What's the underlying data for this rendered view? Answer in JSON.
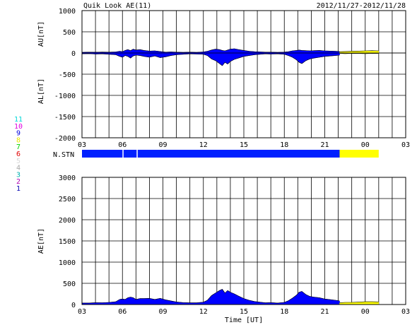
{
  "header": {
    "title": "Quik Look AE(11)",
    "date_range": "2012/11/27-2012/11/28"
  },
  "station_legend": {
    "items": [
      {
        "label": "11",
        "color": "#00d8d8"
      },
      {
        "label": "10",
        "color": "#e000e0"
      },
      {
        "label": "9",
        "color": "#0000e0"
      },
      {
        "label": "8",
        "color": "#e8e800"
      },
      {
        "label": "7",
        "color": "#00d000"
      },
      {
        "label": "6",
        "color": "#e00000"
      },
      {
        "label": "5",
        "color": "#d8d8d8"
      },
      {
        "label": "4",
        "color": "#a8a8a8"
      },
      {
        "label": "3",
        "color": "#00b0b0"
      },
      {
        "label": "2",
        "color": "#b000b0"
      },
      {
        "label": "1",
        "color": "#0000b0"
      }
    ]
  },
  "nstn": {
    "label": "N.STN",
    "segments": [
      {
        "start": 3.0,
        "end": 6.0,
        "color": "#0020ff"
      },
      {
        "start": 6.08,
        "end": 7.05,
        "color": "#0020ff"
      },
      {
        "start": 7.13,
        "end": 22.1,
        "color": "#0020ff"
      },
      {
        "start": 22.1,
        "end": 25.0,
        "color": "#ffff00"
      }
    ]
  },
  "chart_data": [
    {
      "type": "area",
      "ylabel_upper": "AU[nT]",
      "ylabel_lower": "AL[nT]",
      "ylim": [
        -2000,
        1000
      ],
      "yticks": [
        1000,
        500,
        0,
        -500,
        -1000,
        -1500,
        -2000
      ],
      "xlim": [
        3,
        27
      ],
      "xticks": [
        "03",
        "06",
        "09",
        "12",
        "15",
        "18",
        "21",
        "00",
        "03"
      ],
      "grid": true,
      "series": [
        {
          "color": "#0000ff",
          "x": [
            3.0,
            3.5,
            4.0,
            4.5,
            5.0,
            5.5,
            5.8,
            6.0,
            6.2,
            6.4,
            6.6,
            6.8,
            7.0,
            7.3,
            7.6,
            8.0,
            8.4,
            8.8,
            9.2,
            9.6,
            10.0,
            10.5,
            11.0,
            11.5,
            12.0,
            12.3,
            12.6,
            12.9,
            13.2,
            13.4,
            13.6,
            13.8,
            14.0,
            14.3,
            14.6,
            15.0,
            15.4,
            15.8,
            16.2,
            16.6,
            17.0,
            17.5,
            18.0,
            18.3,
            18.6,
            18.9,
            19.1,
            19.3,
            19.6,
            19.9,
            20.2,
            20.6,
            21.0,
            21.4,
            21.8,
            22.1
          ],
          "au": [
            15,
            20,
            18,
            22,
            20,
            25,
            40,
            30,
            60,
            80,
            55,
            90,
            70,
            80,
            60,
            45,
            50,
            35,
            20,
            25,
            20,
            15,
            20,
            15,
            25,
            40,
            70,
            90,
            80,
            60,
            50,
            70,
            90,
            100,
            80,
            60,
            40,
            30,
            25,
            20,
            20,
            15,
            20,
            30,
            50,
            60,
            70,
            60,
            55,
            50,
            55,
            60,
            50,
            45,
            40,
            35
          ],
          "al": [
            -20,
            -15,
            -25,
            -20,
            -30,
            -40,
            -80,
            -100,
            -60,
            -80,
            -120,
            -70,
            -50,
            -60,
            -80,
            -100,
            -70,
            -110,
            -90,
            -60,
            -40,
            -30,
            -20,
            -25,
            -30,
            -60,
            -140,
            -180,
            -250,
            -300,
            -220,
            -260,
            -200,
            -150,
            -120,
            -80,
            -60,
            -40,
            -30,
            -20,
            -25,
            -20,
            -30,
            -60,
            -100,
            -160,
            -220,
            -250,
            -180,
            -140,
            -120,
            -100,
            -80,
            -70,
            -60,
            -50
          ]
        },
        {
          "color": "#ffff00",
          "x": [
            22.1,
            22.5,
            23.0,
            23.5,
            24.0,
            24.5,
            25.0
          ],
          "au": [
            30,
            35,
            40,
            45,
            50,
            55,
            50
          ],
          "al": [
            -10,
            -15,
            -10,
            -12,
            -15,
            -10,
            -12
          ]
        }
      ]
    },
    {
      "type": "area",
      "ylabel": "AE[nT]",
      "xlabel": "Time [UT]",
      "ylim": [
        0,
        3000
      ],
      "yticks": [
        3000,
        2500,
        2000,
        1500,
        1000,
        500,
        0
      ],
      "xlim": [
        3,
        27
      ],
      "xticks": [
        "03",
        "06",
        "09",
        "12",
        "15",
        "18",
        "21",
        "00",
        "03"
      ],
      "grid": true,
      "series": [
        {
          "color": "#0000ff",
          "x": [
            3.0,
            3.5,
            4.0,
            4.5,
            5.0,
            5.5,
            5.8,
            6.0,
            6.2,
            6.4,
            6.6,
            6.8,
            7.0,
            7.3,
            7.6,
            8.0,
            8.4,
            8.8,
            9.2,
            9.6,
            10.0,
            10.5,
            11.0,
            11.5,
            12.0,
            12.3,
            12.6,
            12.9,
            13.2,
            13.4,
            13.6,
            13.8,
            14.0,
            14.3,
            14.6,
            15.0,
            15.4,
            15.8,
            16.2,
            16.6,
            17.0,
            17.5,
            18.0,
            18.3,
            18.6,
            18.9,
            19.1,
            19.3,
            19.6,
            19.9,
            20.2,
            20.6,
            21.0,
            21.4,
            21.8,
            22.1
          ],
          "values": [
            35,
            35,
            43,
            42,
            50,
            65,
            120,
            130,
            120,
            160,
            175,
            160,
            120,
            140,
            140,
            145,
            120,
            145,
            110,
            85,
            60,
            45,
            40,
            40,
            55,
            100,
            210,
            270,
            330,
            360,
            270,
            330,
            290,
            250,
            200,
            140,
            100,
            70,
            55,
            40,
            45,
            35,
            50,
            90,
            150,
            220,
            290,
            310,
            235,
            190,
            175,
            160,
            130,
            115,
            100,
            85
          ]
        },
        {
          "color": "#ffff00",
          "x": [
            22.1,
            22.5,
            23.0,
            23.5,
            24.0,
            24.5,
            25.0
          ],
          "values": [
            40,
            50,
            50,
            57,
            65,
            65,
            62
          ]
        }
      ]
    }
  ]
}
